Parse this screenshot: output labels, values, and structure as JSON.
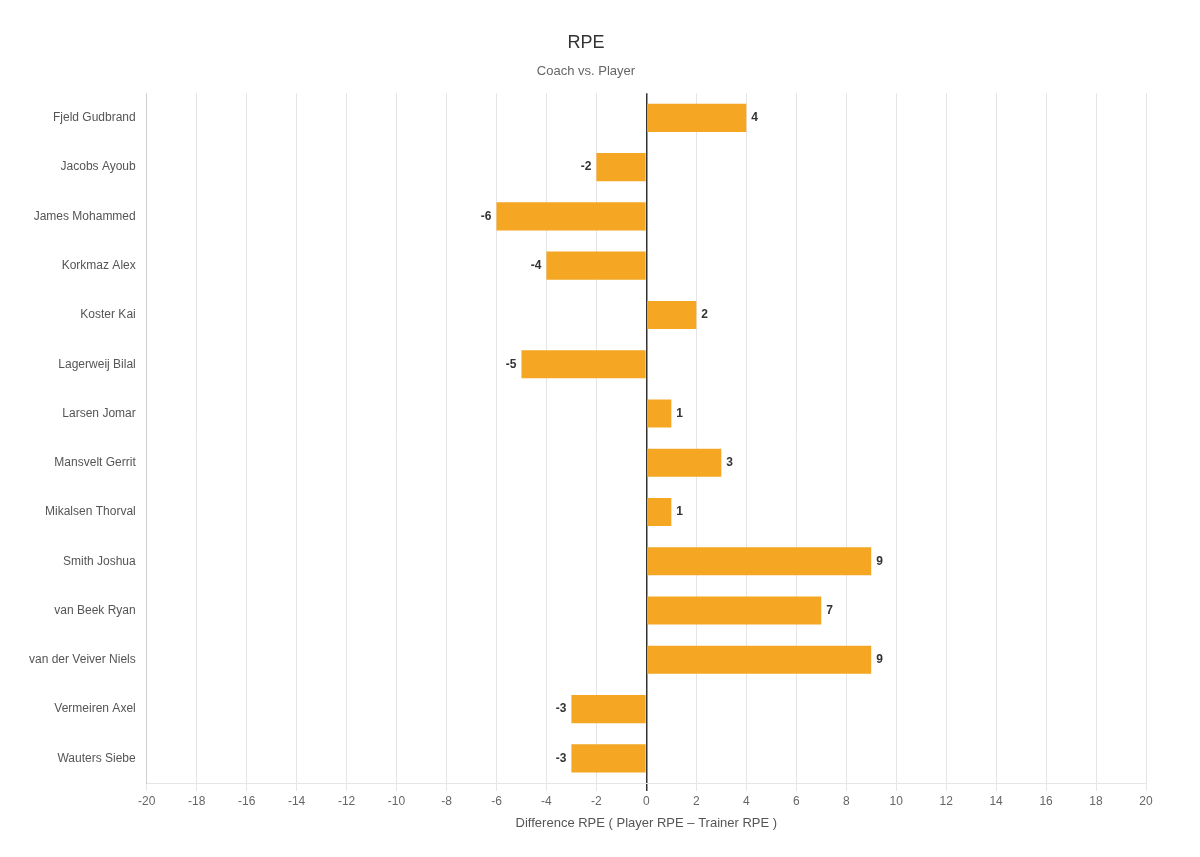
{
  "chart_data": {
    "type": "bar",
    "orientation": "horizontal",
    "title": "RPE",
    "subtitle": "Coach vs. Player",
    "xlabel": "Difference RPE ( Player RPE – Trainer RPE )",
    "categories": [
      "Fjeld Gudbrand",
      "Jacobs Ayoub",
      "James Mohammed",
      "Korkmaz Alex",
      "Koster Kai",
      "Lagerweij Bilal",
      "Larsen Jomar",
      "Mansvelt Gerrit",
      "Mikalsen Thorval",
      "Smith Joshua",
      "van Beek Ryan",
      "van der Veiver Niels",
      "Vermeiren Axel",
      "Wauters Siebe"
    ],
    "values": [
      4,
      -2,
      -6,
      -4,
      2,
      -5,
      1,
      3,
      1,
      9,
      7,
      9,
      -3,
      -3
    ],
    "color": "#F5A623",
    "xlim": [
      -20,
      20
    ],
    "xticks": [
      -20,
      -18,
      -16,
      -14,
      -12,
      -10,
      -8,
      -6,
      -4,
      -2,
      0,
      2,
      4,
      6,
      8,
      10,
      12,
      14,
      16,
      18,
      20
    ],
    "grid": true,
    "data_labels": true
  }
}
